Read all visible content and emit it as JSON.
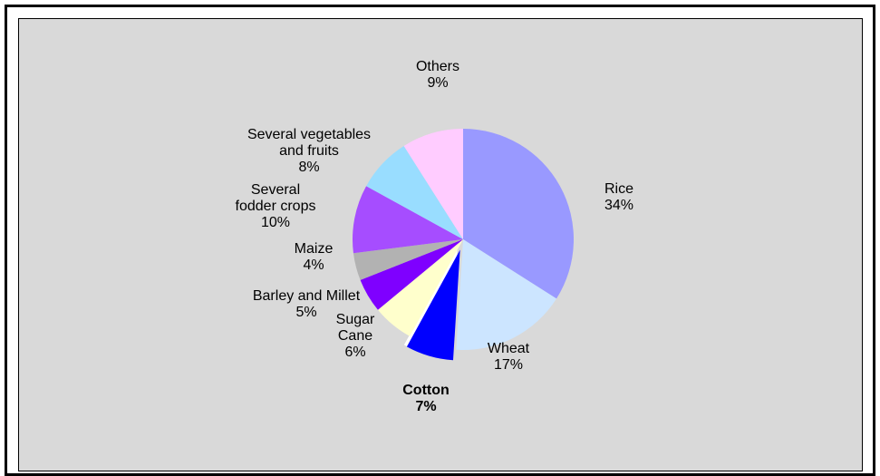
{
  "chart_data": {
    "type": "pie",
    "title": "",
    "legend": "none",
    "start_angle_deg": 0,
    "direction": "clockwise",
    "slices": [
      {
        "name": "Rice",
        "value": 34,
        "label": "34%",
        "color": "#9999ff",
        "exploded": false,
        "bold": false
      },
      {
        "name": "Wheat",
        "value": 17,
        "label": "17%",
        "color": "#cce5ff",
        "exploded": false,
        "bold": false
      },
      {
        "name": "Cotton",
        "value": 7,
        "label": "7%",
        "color": "#0000ff",
        "exploded": true,
        "bold": true
      },
      {
        "name": "Sugar Cane",
        "value": 6,
        "label": "6%",
        "color": "#ffffcc",
        "exploded": false,
        "bold": false
      },
      {
        "name": "Barley and Millet",
        "value": 5,
        "label": "5%",
        "color": "#7f00ff",
        "exploded": false,
        "bold": false
      },
      {
        "name": "Maize",
        "value": 4,
        "label": "4%",
        "color": "#b2b2b2",
        "exploded": false,
        "bold": false
      },
      {
        "name": "Several fodder crops",
        "value": 10,
        "label": "10%",
        "color": "#a64dff",
        "exploded": false,
        "bold": false
      },
      {
        "name": "Several vegetables and fruits",
        "value": 8,
        "label": "8%",
        "color": "#99ddff",
        "exploded": false,
        "bold": false
      },
      {
        "name": "Others",
        "value": 9,
        "label": "9%",
        "color": "#ffccff",
        "exploded": false,
        "bold": false
      }
    ],
    "label_lines": {
      "Rice": [
        "Rice"
      ],
      "Wheat": [
        "Wheat"
      ],
      "Cotton": [
        "Cotton"
      ],
      "Sugar Cane": [
        "Sugar",
        "Cane"
      ],
      "Barley and Millet": [
        "Barley and Millet"
      ],
      "Maize": [
        "Maize"
      ],
      "Several fodder crops": [
        "Several",
        "fodder crops"
      ],
      "Several vegetables and fruits": [
        "Several vegetables",
        "and fruits"
      ],
      "Others": [
        "Others"
      ]
    }
  }
}
